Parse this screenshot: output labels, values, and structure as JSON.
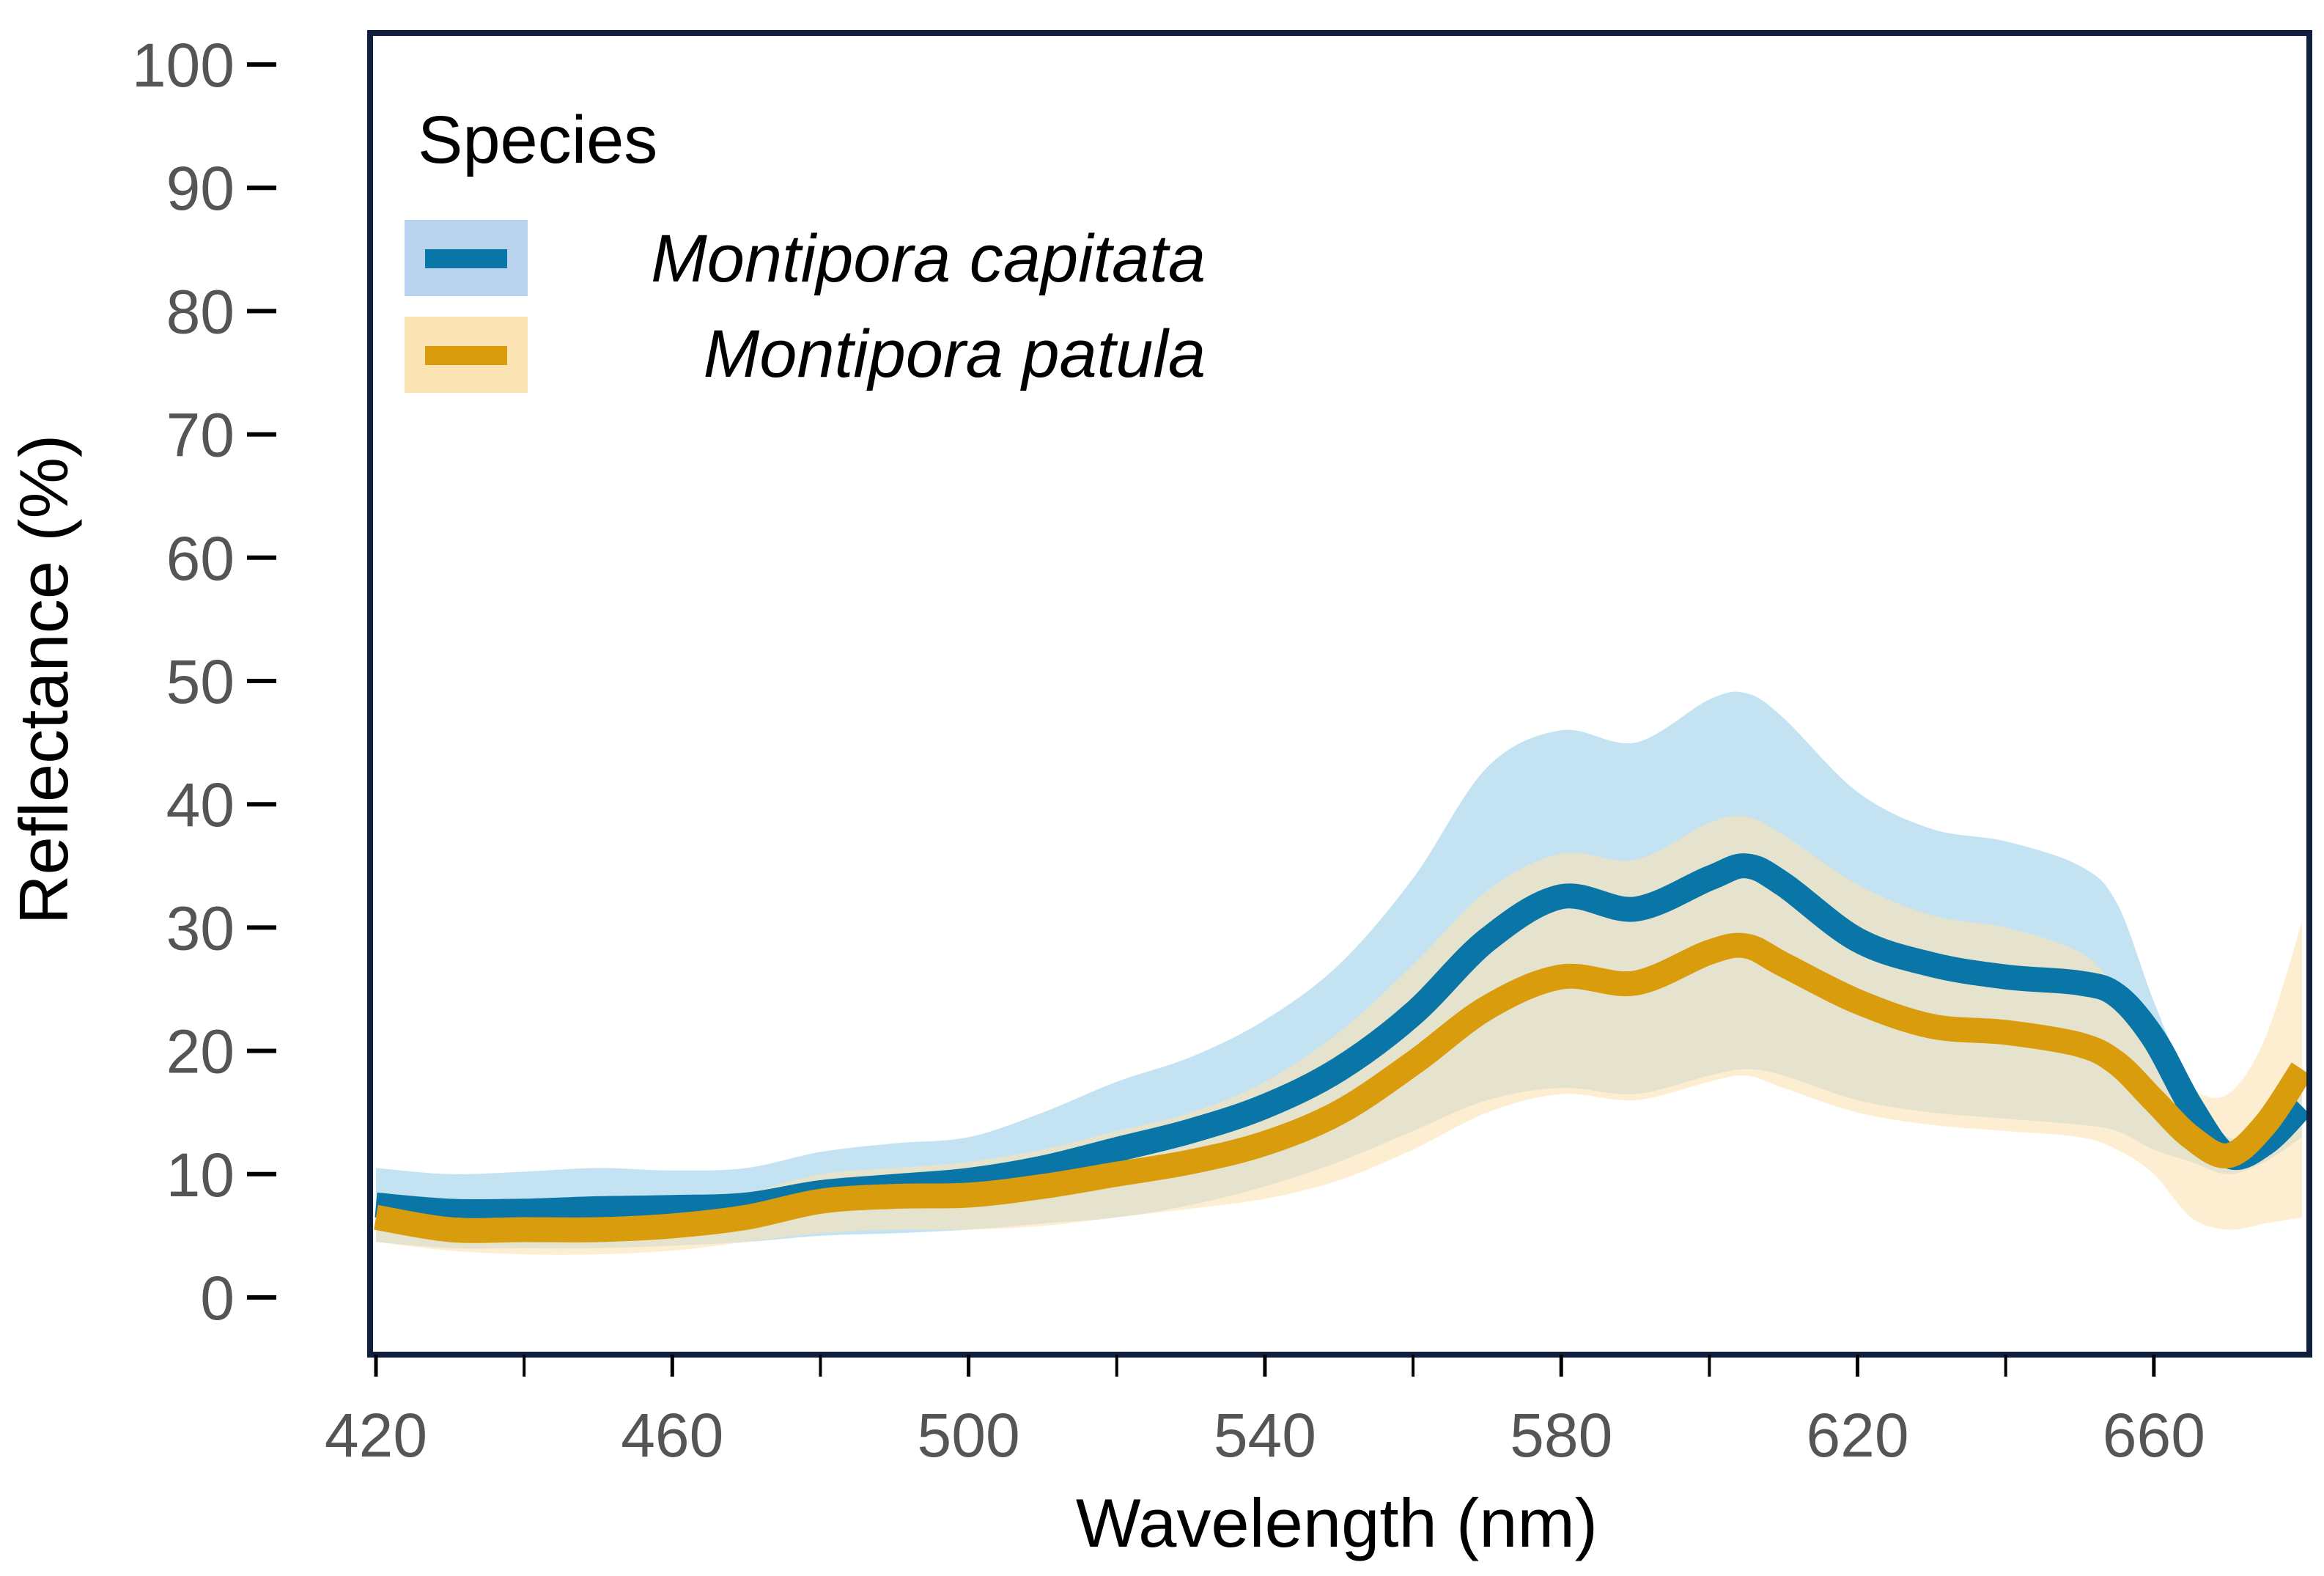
{
  "chart_data": {
    "type": "area",
    "title": "",
    "xlabel": "Wavelength (nm)",
    "ylabel": "Reflectance (%)",
    "xlim": [
      420,
      680
    ],
    "ylim": [
      0,
      100
    ],
    "xticks": [
      420,
      460,
      500,
      540,
      580,
      620,
      660
    ],
    "yticks": [
      0,
      10,
      20,
      30,
      40,
      50,
      60,
      70,
      80,
      90,
      100
    ],
    "x_minor_ticks": [
      440,
      480,
      520,
      560,
      600,
      640
    ],
    "x": [
      420,
      430,
      440,
      450,
      460,
      470,
      480,
      490,
      500,
      510,
      520,
      530,
      540,
      550,
      560,
      570,
      580,
      590,
      600,
      605,
      610,
      620,
      630,
      640,
      650,
      655,
      660,
      665,
      670,
      675,
      680
    ],
    "legend": {
      "title": "Species",
      "position": "top-left"
    },
    "series": [
      {
        "name": "Montipora capitata",
        "color": "#0a76a8",
        "band_color": "#a6d6ee",
        "legend_band_color": "#b9d2ee",
        "values": [
          7.5,
          7.0,
          7.0,
          7.2,
          7.3,
          7.5,
          8.5,
          9.0,
          9.5,
          10.5,
          12.0,
          13.5,
          15.5,
          18.5,
          23.0,
          29.0,
          32.5,
          31.5,
          34.0,
          35.0,
          33.5,
          29.0,
          27.0,
          26.0,
          25.5,
          24.5,
          21.0,
          15.5,
          11.5,
          12.5,
          15.5
        ],
        "upper": [
          10.5,
          10.0,
          10.2,
          10.5,
          10.3,
          10.5,
          11.8,
          12.5,
          13.0,
          15.0,
          17.5,
          19.5,
          22.5,
          27.0,
          34.0,
          43.0,
          46.0,
          45.0,
          48.5,
          49.0,
          47.0,
          41.0,
          38.0,
          37.0,
          35.0,
          32.0,
          24.0,
          17.0,
          13.0,
          14.0,
          16.5
        ],
        "lower": [
          4.5,
          4.0,
          4.0,
          4.0,
          4.2,
          4.5,
          5.0,
          5.2,
          5.5,
          6.0,
          6.5,
          7.5,
          9.0,
          11.0,
          13.5,
          16.0,
          17.0,
          16.5,
          18.0,
          18.5,
          18.0,
          16.0,
          15.0,
          14.5,
          14.0,
          13.5,
          12.0,
          11.0,
          10.0,
          11.0,
          13.0
        ]
      },
      {
        "name": "Montipora patula",
        "color": "#d99c0c",
        "band_color": "#fbe3b4",
        "legend_band_color": "#fbe3b4",
        "values": [
          6.5,
          5.5,
          5.5,
          5.5,
          5.8,
          6.5,
          7.8,
          8.2,
          8.3,
          9.0,
          10.0,
          11.0,
          12.5,
          15.0,
          19.0,
          23.5,
          26.0,
          25.5,
          28.0,
          28.5,
          27.0,
          24.0,
          22.0,
          21.5,
          20.5,
          19.0,
          16.0,
          13.0,
          11.5,
          14.0,
          18.5
        ],
        "upper": [
          8.5,
          7.5,
          7.5,
          7.5,
          7.8,
          8.5,
          10.0,
          10.5,
          11.0,
          12.0,
          13.5,
          15.0,
          17.5,
          21.5,
          27.0,
          33.0,
          36.0,
          35.5,
          38.5,
          39.0,
          37.5,
          33.5,
          31.0,
          30.0,
          28.0,
          25.0,
          20.5,
          17.0,
          16.5,
          21.0,
          30.5
        ],
        "lower": [
          4.5,
          3.8,
          3.5,
          3.5,
          3.8,
          4.5,
          5.2,
          5.5,
          5.5,
          5.8,
          6.5,
          7.2,
          8.0,
          9.5,
          12.0,
          15.0,
          16.5,
          16.0,
          17.5,
          18.0,
          17.0,
          15.0,
          14.0,
          13.5,
          13.0,
          12.0,
          10.0,
          6.5,
          5.5,
          6.0,
          6.5
        ]
      }
    ]
  }
}
